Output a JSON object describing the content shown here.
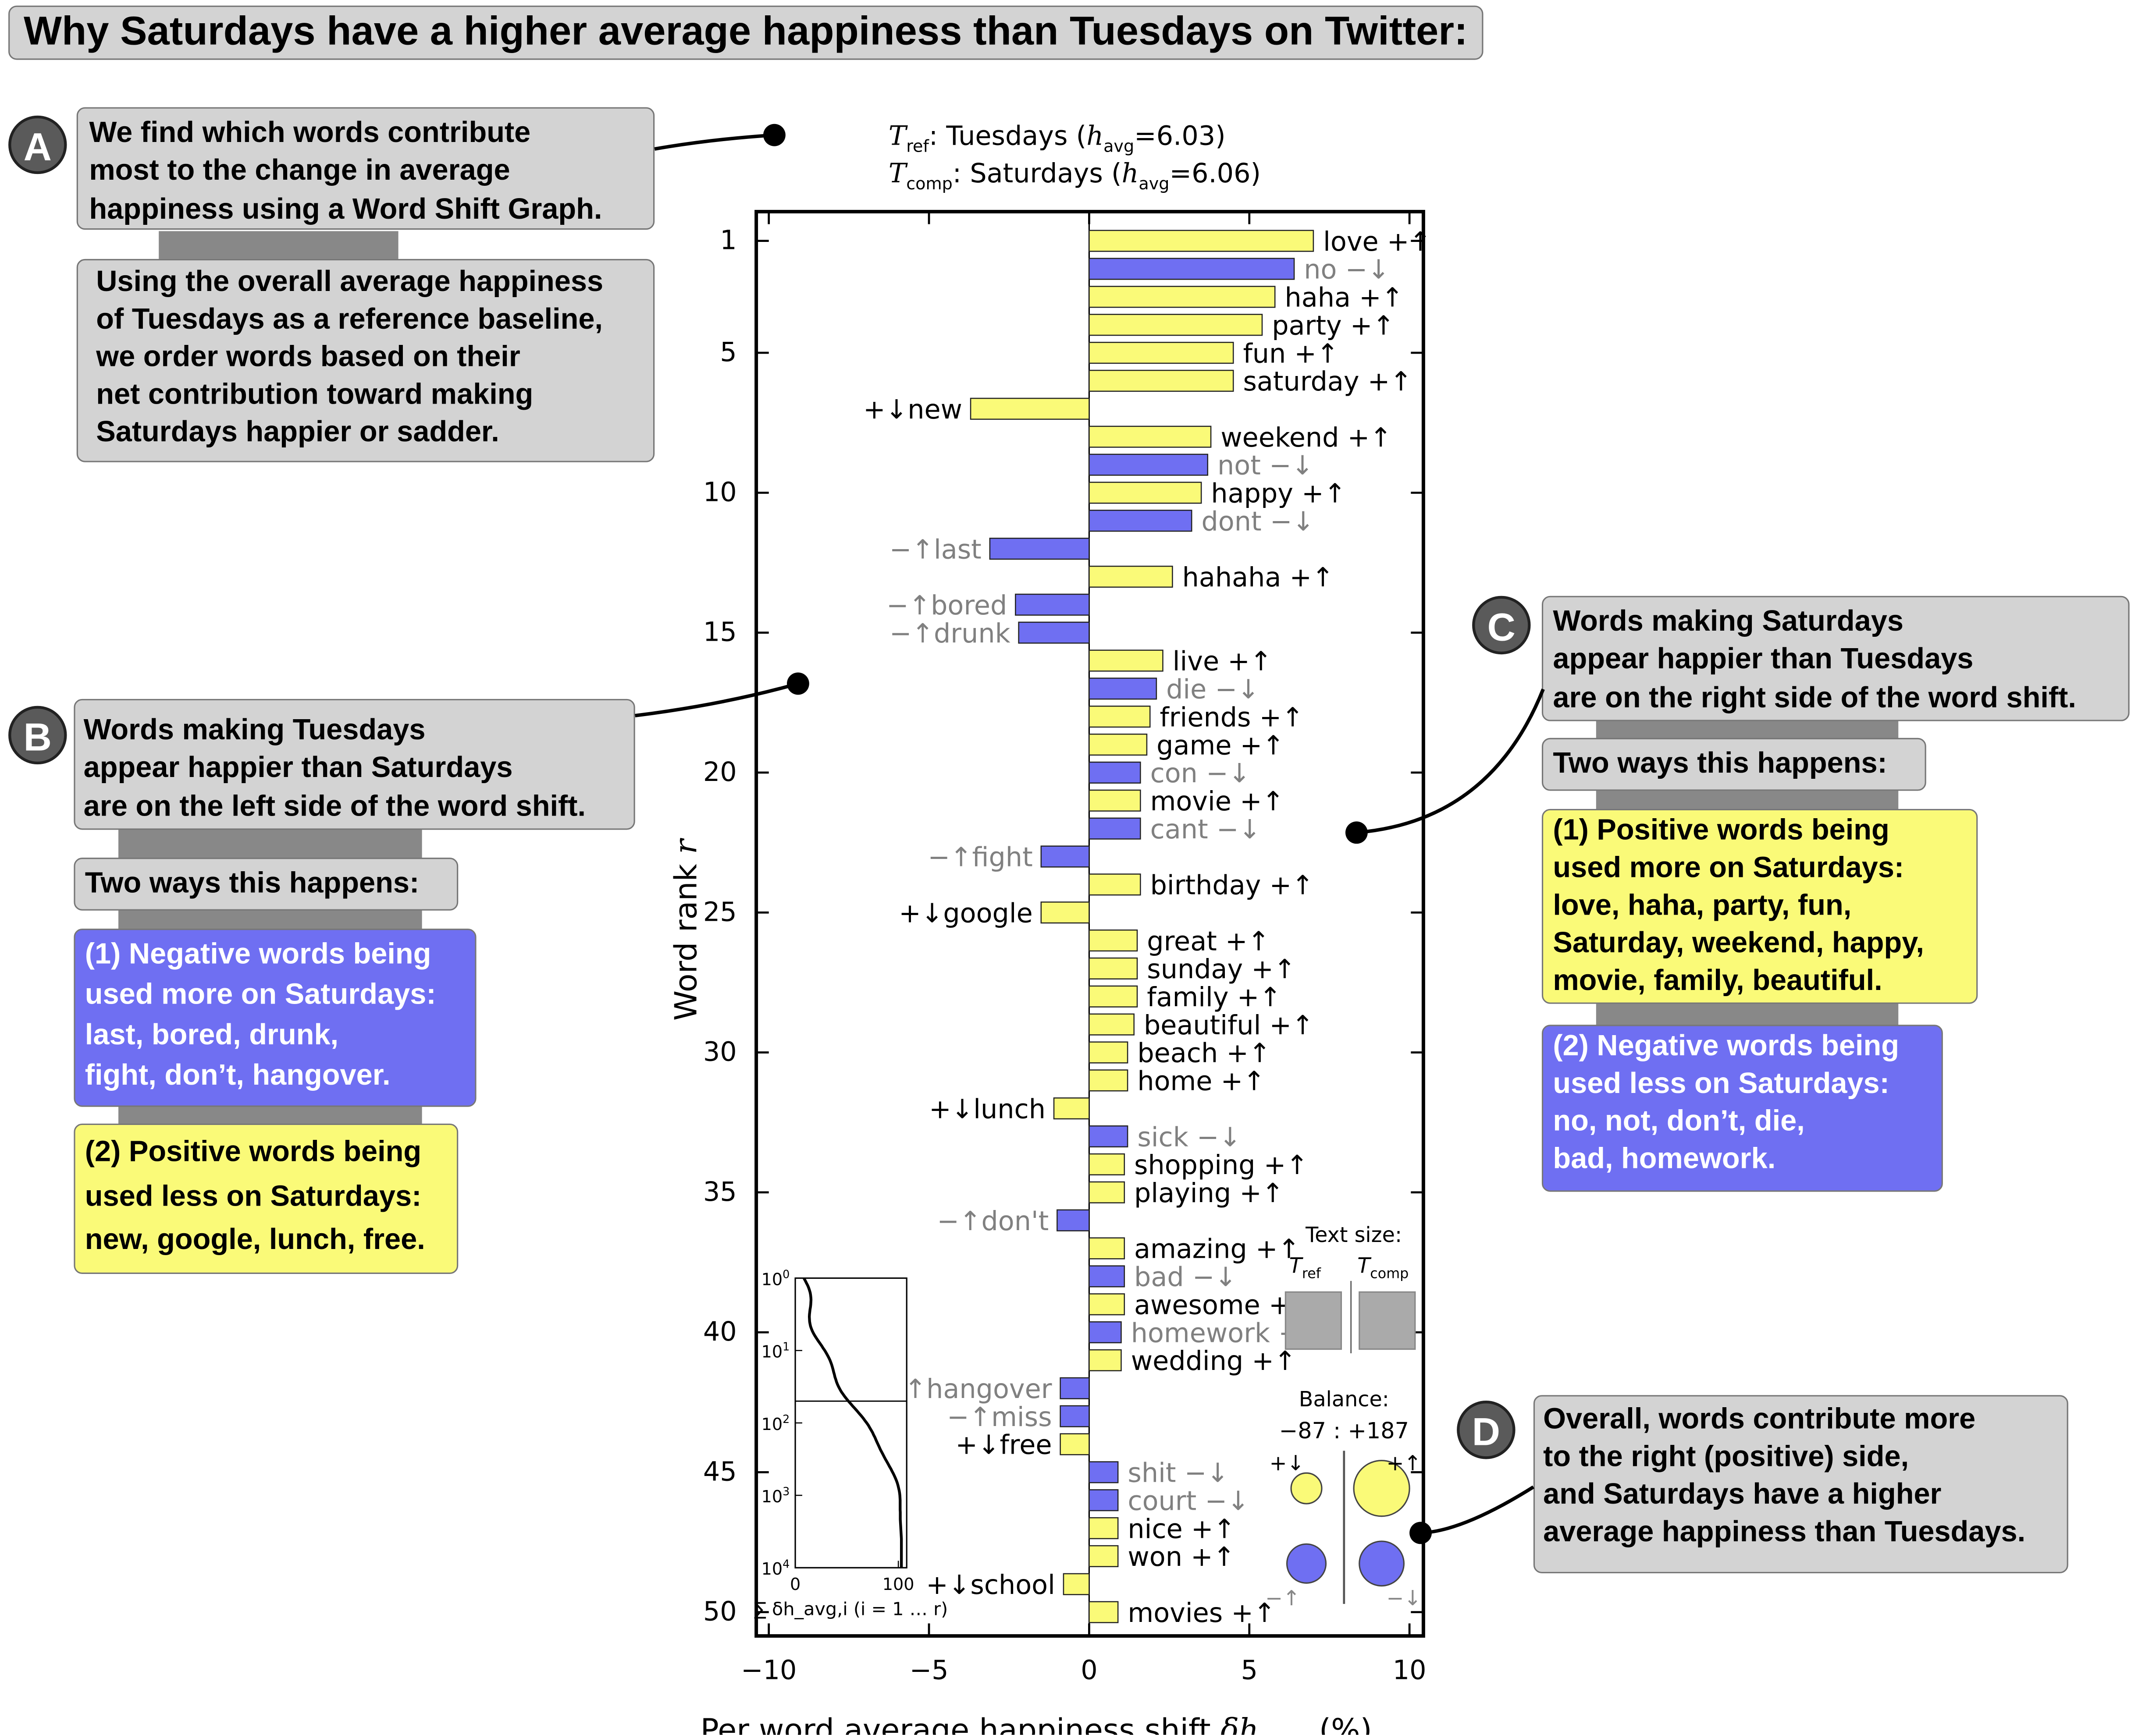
{
  "title": "Why Saturdays have a higher average happiness than Tuesdays on Twitter:",
  "badges": {
    "a": "A",
    "b": "B",
    "c": "C",
    "d": "D"
  },
  "panel_a": {
    "box1": [
      "We find which words contribute",
      "most to the change in average",
      "happiness using a Word Shift Graph."
    ],
    "box2": [
      "Using the overall average happiness",
      "of Tuesdays as a reference baseline,",
      "we order words based on their",
      "net contribution toward making",
      "Saturdays happier or sadder."
    ]
  },
  "panel_b": {
    "box1": [
      "Words making Tuesdays",
      "appear happier than Saturdays",
      "are on the left side of the word shift."
    ],
    "ways": "Two ways this happens:",
    "neg": [
      "(1) Negative words being",
      "used more on Saturdays:",
      "last, bored, drunk,",
      "fight, don’t, hangover."
    ],
    "pos": [
      "(2) Positive words being",
      "used less on Saturdays:",
      "new, google, lunch, free."
    ]
  },
  "panel_c": {
    "box1": [
      "Words making Saturdays",
      "appear happier than Tuesdays",
      "are on the right side of the word shift."
    ],
    "ways": "Two ways this happens:",
    "pos": [
      "(1) Positive words being",
      "used more on Saturdays:",
      "love, haha, party, fun,",
      "Saturday, weekend, happy,",
      "movie, family, beautiful."
    ],
    "neg": [
      "(2) Negative words being",
      "used less on Saturdays:",
      "no, not, don’t, die,",
      "bad, homework."
    ]
  },
  "panel_d": {
    "box1": [
      "Overall, words contribute more",
      "to the right (positive) side,",
      "and Saturdays have a higher",
      "average happiness than Tuesdays."
    ]
  },
  "colors": {
    "positive": "#fafa78",
    "negative": "#6f6ff2",
    "grey_box": "#d3d3d3"
  },
  "chart_data": {
    "type": "bar",
    "orientation": "horizontal",
    "ref_label": "Tuesdays",
    "ref_havg": "6.03",
    "comp_label": "Saturdays",
    "comp_havg": "6.06",
    "xlabel": "Per word average happiness shift δh_avg,r (%)",
    "ylabel": "Word rank r",
    "xlim": [
      -10,
      10.5
    ],
    "ylim": [
      0.5,
      51.1
    ],
    "xticks": [
      -10,
      -5,
      0,
      5,
      10
    ],
    "yticks": [
      1,
      5,
      10,
      15,
      20,
      25,
      30,
      35,
      40,
      45,
      50
    ],
    "words": [
      {
        "rank": 1,
        "word": "love",
        "value": 7.0,
        "sign": "+↑"
      },
      {
        "rank": 2,
        "word": "no",
        "value": 6.4,
        "sign": "−↓"
      },
      {
        "rank": 3,
        "word": "haha",
        "value": 5.8,
        "sign": "+↑"
      },
      {
        "rank": 4,
        "word": "party",
        "value": 5.4,
        "sign": "+↑"
      },
      {
        "rank": 5,
        "word": "fun",
        "value": 4.5,
        "sign": "+↑"
      },
      {
        "rank": 6,
        "word": "saturday",
        "value": 4.5,
        "sign": "+↑"
      },
      {
        "rank": 7,
        "word": "new",
        "value": -3.7,
        "sign": "+↓"
      },
      {
        "rank": 8,
        "word": "weekend",
        "value": 3.8,
        "sign": "+↑"
      },
      {
        "rank": 9,
        "word": "not",
        "value": 3.7,
        "sign": "−↓"
      },
      {
        "rank": 10,
        "word": "happy",
        "value": 3.5,
        "sign": "+↑"
      },
      {
        "rank": 11,
        "word": "dont",
        "value": 3.2,
        "sign": "−↓"
      },
      {
        "rank": 12,
        "word": "last",
        "value": -3.1,
        "sign": "−↑"
      },
      {
        "rank": 13,
        "word": "hahaha",
        "value": 2.6,
        "sign": "+↑"
      },
      {
        "rank": 14,
        "word": "bored",
        "value": -2.3,
        "sign": "−↑"
      },
      {
        "rank": 15,
        "word": "drunk",
        "value": -2.2,
        "sign": "−↑"
      },
      {
        "rank": 16,
        "word": "live",
        "value": 2.3,
        "sign": "+↑"
      },
      {
        "rank": 17,
        "word": "die",
        "value": 2.1,
        "sign": "−↓"
      },
      {
        "rank": 18,
        "word": "friends",
        "value": 1.9,
        "sign": "+↑"
      },
      {
        "rank": 19,
        "word": "game",
        "value": 1.8,
        "sign": "+↑"
      },
      {
        "rank": 20,
        "word": "con",
        "value": 1.6,
        "sign": "−↓"
      },
      {
        "rank": 21,
        "word": "movie",
        "value": 1.6,
        "sign": "+↑"
      },
      {
        "rank": 22,
        "word": "cant",
        "value": 1.6,
        "sign": "−↓"
      },
      {
        "rank": 23,
        "word": "fight",
        "value": -1.5,
        "sign": "−↑"
      },
      {
        "rank": 24,
        "word": "birthday",
        "value": 1.6,
        "sign": "+↑"
      },
      {
        "rank": 25,
        "word": "google",
        "value": -1.5,
        "sign": "+↓"
      },
      {
        "rank": 26,
        "word": "great",
        "value": 1.5,
        "sign": "+↑"
      },
      {
        "rank": 27,
        "word": "sunday",
        "value": 1.5,
        "sign": "+↑"
      },
      {
        "rank": 28,
        "word": "family",
        "value": 1.5,
        "sign": "+↑"
      },
      {
        "rank": 29,
        "word": "beautiful",
        "value": 1.4,
        "sign": "+↑"
      },
      {
        "rank": 30,
        "word": "beach",
        "value": 1.2,
        "sign": "+↑"
      },
      {
        "rank": 31,
        "word": "home",
        "value": 1.2,
        "sign": "+↑"
      },
      {
        "rank": 32,
        "word": "lunch",
        "value": -1.1,
        "sign": "+↓"
      },
      {
        "rank": 33,
        "word": "sick",
        "value": 1.2,
        "sign": "−↓"
      },
      {
        "rank": 34,
        "word": "shopping",
        "value": 1.1,
        "sign": "+↑"
      },
      {
        "rank": 35,
        "word": "playing",
        "value": 1.1,
        "sign": "+↑"
      },
      {
        "rank": 36,
        "word": "don't",
        "value": -1.0,
        "sign": "−↑"
      },
      {
        "rank": 37,
        "word": "amazing",
        "value": 1.1,
        "sign": "+↑"
      },
      {
        "rank": 38,
        "word": "bad",
        "value": 1.1,
        "sign": "−↓"
      },
      {
        "rank": 39,
        "word": "awesome",
        "value": 1.1,
        "sign": "+↑"
      },
      {
        "rank": 40,
        "word": "homework",
        "value": 1.0,
        "sign": "−↓"
      },
      {
        "rank": 41,
        "word": "wedding",
        "value": 1.0,
        "sign": "+↑"
      },
      {
        "rank": 42,
        "word": "hangover",
        "value": -0.9,
        "sign": "−↑"
      },
      {
        "rank": 43,
        "word": "miss",
        "value": -0.9,
        "sign": "−↑"
      },
      {
        "rank": 44,
        "word": "free",
        "value": -0.9,
        "sign": "+↓"
      },
      {
        "rank": 45,
        "word": "shit",
        "value": 0.9,
        "sign": "−↓"
      },
      {
        "rank": 46,
        "word": "court",
        "value": 0.9,
        "sign": "−↓"
      },
      {
        "rank": 47,
        "word": "nice",
        "value": 0.9,
        "sign": "+↑"
      },
      {
        "rank": 48,
        "word": "won",
        "value": 0.9,
        "sign": "+↑"
      },
      {
        "rank": 49,
        "word": "school",
        "value": -0.8,
        "sign": "+↓"
      },
      {
        "rank": 50,
        "word": "movies",
        "value": 0.9,
        "sign": "+↑"
      }
    ],
    "inset": {
      "xlabel": "∑ δh_avg,i  (i = 1 … r)",
      "xticks": [
        "0",
        "100"
      ],
      "yticks": [
        "10^0",
        "10^1",
        "10^2",
        "10^3",
        "10^4"
      ],
      "hline": 50
    },
    "text_size_legend": {
      "title": "Text size:",
      "ref": "T_ref",
      "comp": "T_comp"
    },
    "balance": {
      "title": "Balance:",
      "values": "−87 : +187",
      "neg_total": -87,
      "pos_total": 187,
      "labels": [
        "+↓",
        "+↑",
        "−↑",
        "−↓"
      ]
    }
  }
}
